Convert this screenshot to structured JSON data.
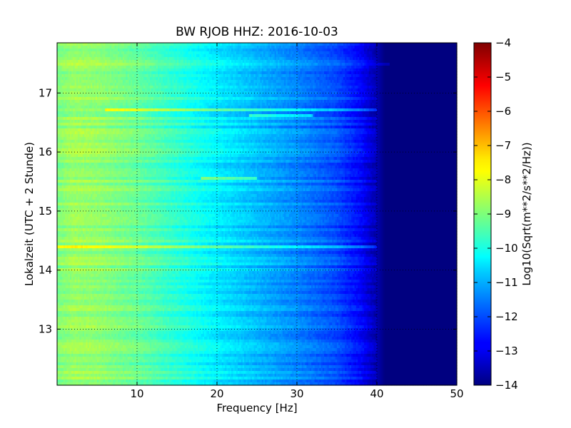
{
  "chart_data": {
    "type": "heatmap",
    "title": "BW RJOB HHZ: 2016-10-03",
    "xlabel": "Frequency [Hz]",
    "ylabel": "Lokalzeit (UTC + 2 Stunde)",
    "xlim": [
      0,
      50
    ],
    "ylim": [
      17.85,
      12.05
    ],
    "x_ticks": [
      10,
      20,
      30,
      40,
      50
    ],
    "x_tick_labels": [
      "10",
      "20",
      "30",
      "40",
      "50"
    ],
    "y_ticks": [
      13,
      14,
      15,
      16,
      17
    ],
    "y_tick_labels": [
      "13",
      "14",
      "15",
      "16",
      "17"
    ],
    "grid": true,
    "colormap": "jet",
    "colorbar": {
      "label": "Log10(Sqrt(m**2/s**2/Hz))",
      "range": [
        -14,
        -4
      ],
      "ticks": [
        -4,
        -5,
        -6,
        -7,
        -8,
        -9,
        -10,
        -11,
        -12,
        -13,
        -14
      ],
      "tick_labels": [
        "−4",
        "−5",
        "−6",
        "−7",
        "−8",
        "−9",
        "−10",
        "−11",
        "−12",
        "−13",
        "−14"
      ]
    },
    "spectrum_profile": {
      "frequency_hz": [
        0,
        2,
        5,
        10,
        15,
        20,
        25,
        30,
        35,
        38,
        40,
        41,
        42,
        50
      ],
      "log10_amplitude": [
        -9.0,
        -8.7,
        -8.8,
        -9.2,
        -9.8,
        -10.4,
        -10.9,
        -11.4,
        -12.0,
        -12.7,
        -13.5,
        -14.0,
        -14.0,
        -14.0
      ]
    },
    "highlighted_bands": [
      {
        "hour": 14.4,
        "f_max": 40,
        "boost": 0.8
      },
      {
        "hour": 15.57,
        "f_min": 18,
        "f_max": 25,
        "boost": 1.4
      },
      {
        "hour": 16.6,
        "f_min": 24,
        "f_max": 32,
        "boost": 1.3
      },
      {
        "hour": 16.7,
        "f_min": 6,
        "f_max": 40,
        "boost": 1.1
      },
      {
        "hour": 17.5,
        "f_max": 42,
        "boost": 0.5
      }
    ]
  }
}
